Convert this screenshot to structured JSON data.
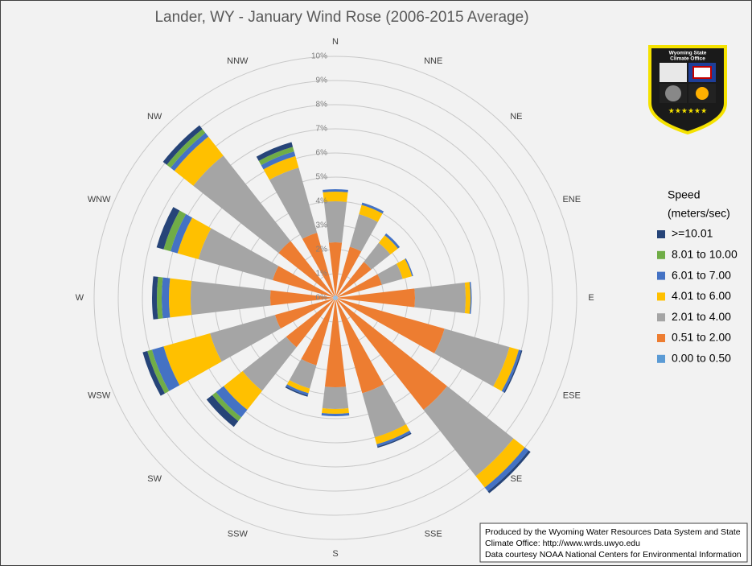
{
  "chart_data": {
    "type": "wind_rose",
    "title": "Lander, WY - January Wind Rose (2006-2015 Average)",
    "categories": [
      "N",
      "NNE",
      "NE",
      "ENE",
      "E",
      "ESE",
      "SE",
      "SSE",
      "S",
      "SSW",
      "SW",
      "WSW",
      "W",
      "WNW",
      "NW",
      "NNW"
    ],
    "series": [
      {
        "name": "0.00 to 0.50",
        "color": "#5b9bd5",
        "values": [
          0.1,
          0.1,
          0.1,
          0.1,
          0.1,
          0.1,
          0.1,
          0.1,
          0.1,
          0.1,
          0.1,
          0.1,
          0.1,
          0.1,
          0.1,
          0.1
        ]
      },
      {
        "name": "0.51 to 2.00",
        "color": "#ed7d31",
        "values": [
          2.2,
          2.1,
          1.8,
          1.9,
          3.2,
          4.6,
          5.8,
          4.0,
          3.6,
          2.8,
          2.5,
          2.5,
          2.6,
          2.6,
          2.9,
          2.7
        ]
      },
      {
        "name": "2.01 to 4.00",
        "color": "#a5a5a5",
        "values": [
          1.7,
          1.4,
          1.0,
          0.9,
          2.1,
          2.8,
          3.5,
          1.9,
          0.9,
          1.0,
          2.3,
          2.8,
          3.3,
          3.2,
          4.5,
          2.8
        ]
      },
      {
        "name": "4.01 to 6.00",
        "color": "#ffc000",
        "values": [
          0.4,
          0.4,
          0.4,
          0.4,
          0.2,
          0.4,
          0.6,
          0.3,
          0.2,
          0.2,
          1.0,
          2.0,
          0.9,
          0.9,
          1.0,
          0.5
        ]
      },
      {
        "name": "6.01 to 7.00",
        "color": "#4472c4",
        "values": [
          0.1,
          0.1,
          0.1,
          0.05,
          0.05,
          0.1,
          0.2,
          0.1,
          0.1,
          0.1,
          0.4,
          0.5,
          0.3,
          0.3,
          0.2,
          0.2
        ]
      },
      {
        "name": "8.01 to 10.00",
        "color": "#70ad47",
        "values": [
          0,
          0,
          0,
          0,
          0,
          0,
          0,
          0,
          0,
          0,
          0.2,
          0.2,
          0.2,
          0.3,
          0.2,
          0.2
        ]
      },
      {
        "name": ">=10.01",
        "color": "#264478",
        "values": [
          0,
          0,
          0,
          0,
          0,
          0.05,
          0.1,
          0.05,
          0,
          0.05,
          0.3,
          0.2,
          0.2,
          0.3,
          0.2,
          0.2
        ]
      }
    ],
    "rlim": [
      0,
      10
    ],
    "rticks": [
      {
        "value": 0,
        "label": "0%"
      },
      {
        "value": 1,
        "label": "1%"
      },
      {
        "value": 2,
        "label": "2%"
      },
      {
        "value": 3,
        "label": "3%"
      },
      {
        "value": 4,
        "label": "4%"
      },
      {
        "value": 5,
        "label": "5%"
      },
      {
        "value": 6,
        "label": "6%"
      },
      {
        "value": 7,
        "label": "7%"
      },
      {
        "value": 8,
        "label": "8%"
      },
      {
        "value": 9,
        "label": "9%"
      },
      {
        "value": 10,
        "label": "10%"
      }
    ],
    "legend_title": [
      "Speed",
      "(meters/sec)"
    ],
    "legend": "right",
    "logo_text": [
      "Wyoming State",
      "Climate Office"
    ],
    "footer": [
      "Produced by the Wyoming Water Resources Data System and State",
      "Climate Office: http://www.wrds.uwyo.edu",
      "Data courtesy NOAA National Centers for Environmental Information"
    ]
  }
}
